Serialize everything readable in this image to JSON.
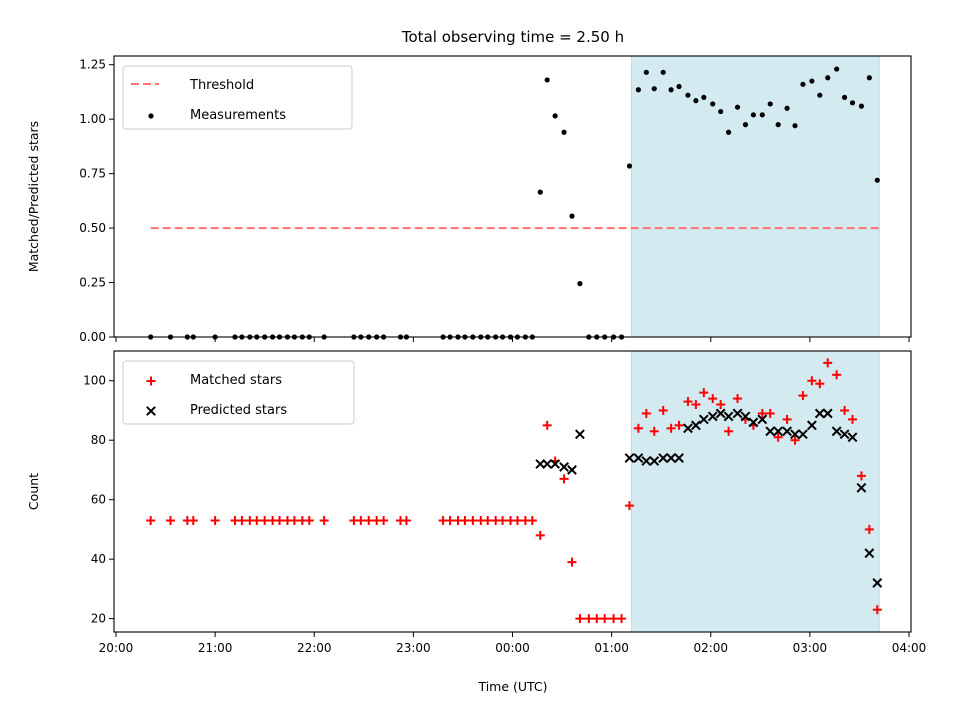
{
  "chart_data": {
    "title": "Total observing time = 2.50 h",
    "xlabel": "Time (UTC)",
    "x_tick_labels": [
      "20:00",
      "21:00",
      "22:00",
      "23:00",
      "00:00",
      "01:00",
      "02:00",
      "03:00",
      "04:00"
    ],
    "x_tick_hours": [
      0,
      1,
      2,
      3,
      4,
      5,
      6,
      7,
      8
    ],
    "x_axis_hours_since": "20:00",
    "xlim_hours": [
      -0.02,
      8.02
    ],
    "shaded_region_hours": [
      5.2,
      7.7
    ],
    "shade_color": "#d3eaf0",
    "panels": [
      {
        "type": "scatter",
        "ylabel": "Matched/Predicted stars",
        "ylim": [
          0,
          1.29
        ],
        "y_ticks": [
          0.0,
          0.25,
          0.5,
          0.75,
          1.0,
          1.25
        ],
        "y_tick_labels": [
          "0.00",
          "0.25",
          "0.50",
          "0.75",
          "1.00",
          "1.25"
        ],
        "legend": [
          {
            "label": "Threshold",
            "style": "dashed-line",
            "color": "#ff7070"
          },
          {
            "label": "Measurements",
            "style": "dot",
            "color": "#000000"
          }
        ],
        "threshold": {
          "name": "Threshold",
          "value": 0.5,
          "x_range_hours": [
            0.35,
            7.7
          ],
          "color": "#ff7070"
        },
        "series": [
          {
            "name": "Measurements",
            "marker": "dot",
            "color": "#000000",
            "points": [
              [
                0.35,
                0
              ],
              [
                0.55,
                0
              ],
              [
                0.72,
                0
              ],
              [
                0.78,
                0
              ],
              [
                1.0,
                0
              ],
              [
                1.2,
                0
              ],
              [
                1.27,
                0
              ],
              [
                1.35,
                0
              ],
              [
                1.42,
                0
              ],
              [
                1.5,
                0
              ],
              [
                1.58,
                0
              ],
              [
                1.65,
                0
              ],
              [
                1.73,
                0
              ],
              [
                1.8,
                0
              ],
              [
                1.88,
                0
              ],
              [
                1.95,
                0
              ],
              [
                2.1,
                0
              ],
              [
                2.4,
                0
              ],
              [
                2.47,
                0
              ],
              [
                2.55,
                0
              ],
              [
                2.63,
                0
              ],
              [
                2.7,
                0
              ],
              [
                2.87,
                0
              ],
              [
                2.93,
                0
              ],
              [
                3.3,
                0
              ],
              [
                3.37,
                0
              ],
              [
                3.45,
                0
              ],
              [
                3.52,
                0
              ],
              [
                3.6,
                0
              ],
              [
                3.68,
                0
              ],
              [
                3.75,
                0
              ],
              [
                3.83,
                0
              ],
              [
                3.9,
                0
              ],
              [
                3.98,
                0
              ],
              [
                4.05,
                0
              ],
              [
                4.13,
                0
              ],
              [
                4.2,
                0
              ],
              [
                4.28,
                0.665
              ],
              [
                4.35,
                1.18
              ],
              [
                4.43,
                1.015
              ],
              [
                4.52,
                0.94
              ],
              [
                4.6,
                0.555
              ],
              [
                4.68,
                0.245
              ],
              [
                4.77,
                0
              ],
              [
                4.85,
                0
              ],
              [
                4.93,
                0
              ],
              [
                5.02,
                0
              ],
              [
                5.1,
                0
              ],
              [
                5.18,
                0.785
              ],
              [
                5.27,
                1.135
              ],
              [
                5.35,
                1.215
              ],
              [
                5.43,
                1.14
              ],
              [
                5.52,
                1.215
              ],
              [
                5.6,
                1.135
              ],
              [
                5.68,
                1.15
              ],
              [
                5.77,
                1.11
              ],
              [
                5.85,
                1.085
              ],
              [
                5.93,
                1.1
              ],
              [
                6.02,
                1.07
              ],
              [
                6.1,
                1.035
              ],
              [
                6.18,
                0.94
              ],
              [
                6.27,
                1.055
              ],
              [
                6.35,
                0.975
              ],
              [
                6.43,
                1.02
              ],
              [
                6.52,
                1.02
              ],
              [
                6.6,
                1.07
              ],
              [
                6.68,
                0.975
              ],
              [
                6.77,
                1.05
              ],
              [
                6.85,
                0.97
              ],
              [
                6.93,
                1.16
              ],
              [
                7.02,
                1.175
              ],
              [
                7.1,
                1.11
              ],
              [
                7.18,
                1.19
              ],
              [
                7.27,
                1.23
              ],
              [
                7.35,
                1.1
              ],
              [
                7.43,
                1.075
              ],
              [
                7.52,
                1.06
              ],
              [
                7.6,
                1.19
              ],
              [
                7.68,
                0.72
              ]
            ]
          }
        ]
      },
      {
        "type": "scatter",
        "ylabel": "Count",
        "ylim": [
          15.5,
          110
        ],
        "y_ticks": [
          20,
          40,
          60,
          80,
          100
        ],
        "y_tick_labels": [
          "20",
          "40",
          "60",
          "80",
          "100"
        ],
        "legend": [
          {
            "label": "Matched stars",
            "style": "plus",
            "color": "#ff0000"
          },
          {
            "label": "Predicted stars",
            "style": "x",
            "color": "#000000"
          }
        ],
        "series": [
          {
            "name": "Matched stars",
            "marker": "plus",
            "color": "#ff0000",
            "points": [
              [
                0.35,
                53
              ],
              [
                0.55,
                53
              ],
              [
                0.72,
                53
              ],
              [
                0.78,
                53
              ],
              [
                1.0,
                53
              ],
              [
                1.2,
                53
              ],
              [
                1.27,
                53
              ],
              [
                1.35,
                53
              ],
              [
                1.42,
                53
              ],
              [
                1.5,
                53
              ],
              [
                1.58,
                53
              ],
              [
                1.65,
                53
              ],
              [
                1.73,
                53
              ],
              [
                1.8,
                53
              ],
              [
                1.88,
                53
              ],
              [
                1.95,
                53
              ],
              [
                2.1,
                53
              ],
              [
                2.4,
                53
              ],
              [
                2.47,
                53
              ],
              [
                2.55,
                53
              ],
              [
                2.63,
                53
              ],
              [
                2.7,
                53
              ],
              [
                2.87,
                53
              ],
              [
                2.93,
                53
              ],
              [
                3.3,
                53
              ],
              [
                3.37,
                53
              ],
              [
                3.45,
                53
              ],
              [
                3.52,
                53
              ],
              [
                3.6,
                53
              ],
              [
                3.68,
                53
              ],
              [
                3.75,
                53
              ],
              [
                3.83,
                53
              ],
              [
                3.9,
                53
              ],
              [
                3.98,
                53
              ],
              [
                4.05,
                53
              ],
              [
                4.13,
                53
              ],
              [
                4.2,
                53
              ],
              [
                4.28,
                48
              ],
              [
                4.35,
                85
              ],
              [
                4.43,
                73
              ],
              [
                4.52,
                67
              ],
              [
                4.6,
                39
              ],
              [
                4.68,
                20
              ],
              [
                4.77,
                20
              ],
              [
                4.85,
                20
              ],
              [
                4.93,
                20
              ],
              [
                5.02,
                20
              ],
              [
                5.1,
                20
              ],
              [
                5.18,
                58
              ],
              [
                5.27,
                84
              ],
              [
                5.35,
                89
              ],
              [
                5.43,
                83
              ],
              [
                5.52,
                90
              ],
              [
                5.6,
                84
              ],
              [
                5.68,
                85
              ],
              [
                5.77,
                93
              ],
              [
                5.85,
                92
              ],
              [
                5.93,
                96
              ],
              [
                6.02,
                94
              ],
              [
                6.1,
                92
              ],
              [
                6.18,
                83
              ],
              [
                6.27,
                94
              ],
              [
                6.35,
                87
              ],
              [
                6.43,
                85
              ],
              [
                6.52,
                89
              ],
              [
                6.6,
                89
              ],
              [
                6.68,
                81
              ],
              [
                6.77,
                87
              ],
              [
                6.85,
                80
              ],
              [
                6.93,
                95
              ],
              [
                7.02,
                100
              ],
              [
                7.1,
                99
              ],
              [
                7.18,
                106
              ],
              [
                7.27,
                102
              ],
              [
                7.35,
                90
              ],
              [
                7.43,
                87
              ],
              [
                7.52,
                68
              ],
              [
                7.6,
                50
              ],
              [
                7.68,
                23
              ]
            ]
          },
          {
            "name": "Predicted stars",
            "marker": "x",
            "color": "#000000",
            "points": [
              [
                4.28,
                72
              ],
              [
                4.35,
                72
              ],
              [
                4.43,
                72
              ],
              [
                4.52,
                71
              ],
              [
                4.6,
                70
              ],
              [
                4.68,
                82
              ],
              [
                5.18,
                74
              ],
              [
                5.27,
                74
              ],
              [
                5.35,
                73
              ],
              [
                5.43,
                73
              ],
              [
                5.52,
                74
              ],
              [
                5.6,
                74
              ],
              [
                5.68,
                74
              ],
              [
                5.77,
                84
              ],
              [
                5.85,
                85
              ],
              [
                5.93,
                87
              ],
              [
                6.02,
                88
              ],
              [
                6.1,
                89
              ],
              [
                6.18,
                88
              ],
              [
                6.27,
                89
              ],
              [
                6.35,
                88
              ],
              [
                6.43,
                86
              ],
              [
                6.52,
                87
              ],
              [
                6.6,
                83
              ],
              [
                6.68,
                83
              ],
              [
                6.77,
                83
              ],
              [
                6.85,
                82
              ],
              [
                6.93,
                82
              ],
              [
                7.02,
                85
              ],
              [
                7.1,
                89
              ],
              [
                7.18,
                89
              ],
              [
                7.27,
                83
              ],
              [
                7.35,
                82
              ],
              [
                7.43,
                81
              ],
              [
                7.52,
                64
              ],
              [
                7.6,
                42
              ],
              [
                7.68,
                32
              ]
            ]
          }
        ]
      }
    ]
  }
}
